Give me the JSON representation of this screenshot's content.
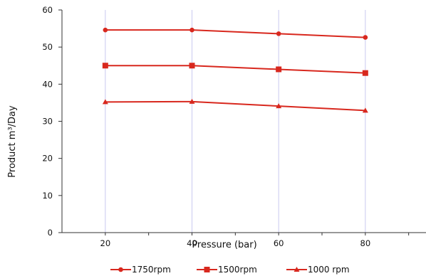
{
  "chart_data": {
    "type": "line",
    "xlabel": "Pressure (bar)",
    "ylabel": "Product m³/Day",
    "x": [
      20,
      40,
      60,
      80
    ],
    "x_tick_labels": [
      "20",
      "40",
      "60",
      "80"
    ],
    "ylim": [
      0,
      60
    ],
    "y_ticks": [
      0,
      10,
      20,
      30,
      40,
      50,
      60
    ],
    "grid": "vertical",
    "legend_position": "bottom",
    "series": [
      {
        "name": "1750rpm",
        "marker": "circle",
        "color": "#d8281e",
        "values": [
          54.6,
          54.6,
          53.6,
          52.6
        ]
      },
      {
        "name": "1500rpm",
        "marker": "square",
        "color": "#d8281e",
        "values": [
          45.0,
          45.0,
          44.0,
          43.0
        ]
      },
      {
        "name": "1000 rpm",
        "marker": "triangle",
        "color": "#d8281e",
        "values": [
          35.2,
          35.3,
          34.1,
          32.9
        ]
      }
    ]
  }
}
